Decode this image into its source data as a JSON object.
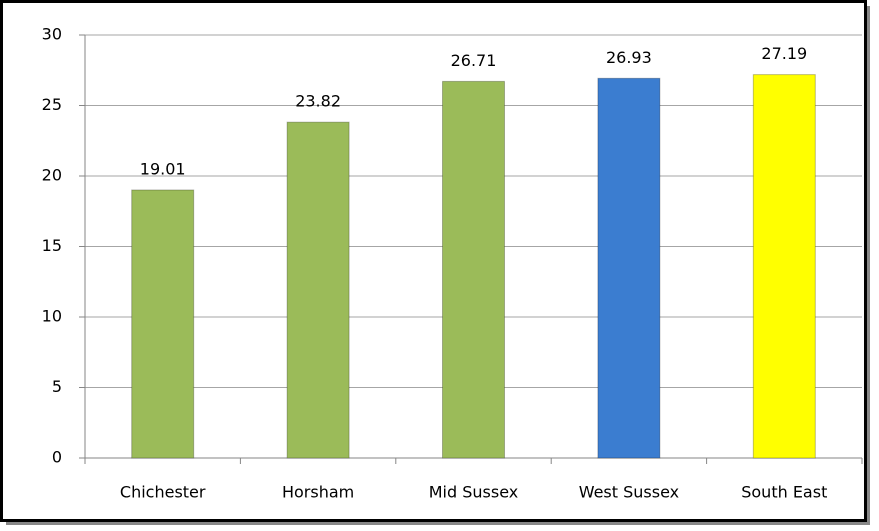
{
  "chart_data": {
    "type": "bar",
    "categories": [
      "Chichester",
      "Horsham",
      "Mid Sussex",
      "West Sussex",
      "South East"
    ],
    "values": [
      19.01,
      23.82,
      26.71,
      26.93,
      27.19
    ],
    "colors": [
      "#9bbb59",
      "#9bbb59",
      "#9bbb59",
      "#3b7dd0",
      "#ffff00"
    ],
    "ylim": [
      0,
      30
    ],
    "yticks": [
      0,
      5,
      10,
      15,
      20,
      25,
      30
    ],
    "grid": true
  }
}
